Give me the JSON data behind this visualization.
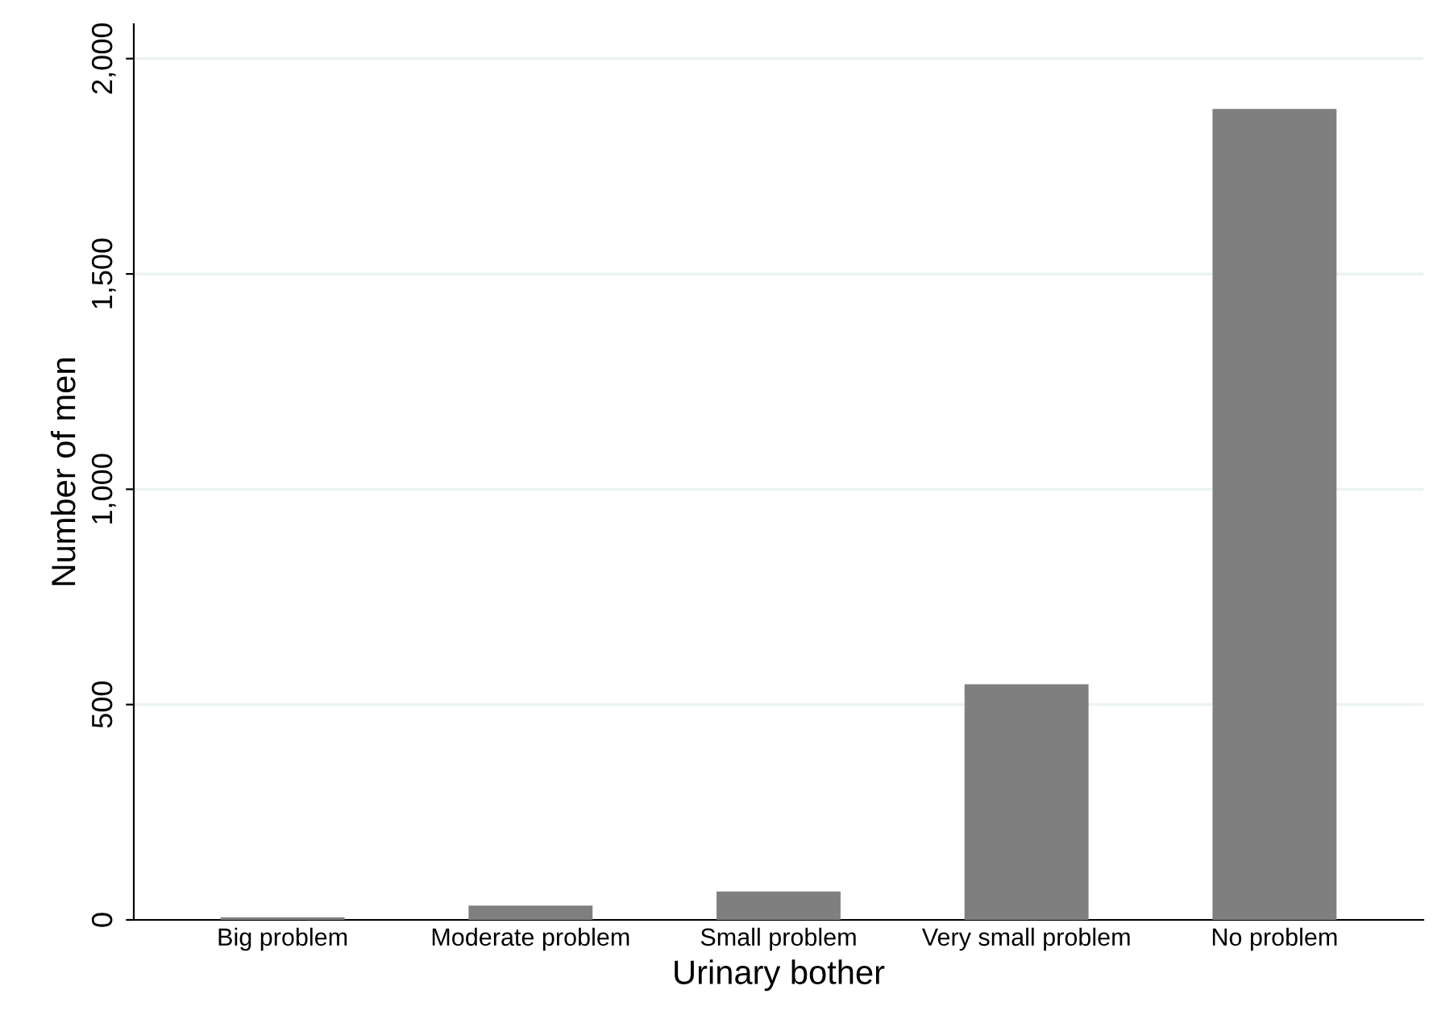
{
  "chart_data": {
    "type": "bar",
    "xlabel": "Urinary bother",
    "ylabel": "Number of men",
    "categories": [
      "Big problem",
      "Moderate problem",
      "Small problem",
      "Very small problem",
      "No problem"
    ],
    "values": [
      6,
      33,
      66,
      547,
      1883
    ],
    "color": "#7f7f7f",
    "ylim": [
      0,
      2080
    ],
    "yticks": [
      {
        "value": 0,
        "label": "0"
      },
      {
        "value": 500,
        "label": "500"
      },
      {
        "value": 1000,
        "label": "1,000"
      },
      {
        "value": 1500,
        "label": "1,500"
      },
      {
        "value": 2000,
        "label": "2,000"
      }
    ],
    "grid": "y"
  }
}
